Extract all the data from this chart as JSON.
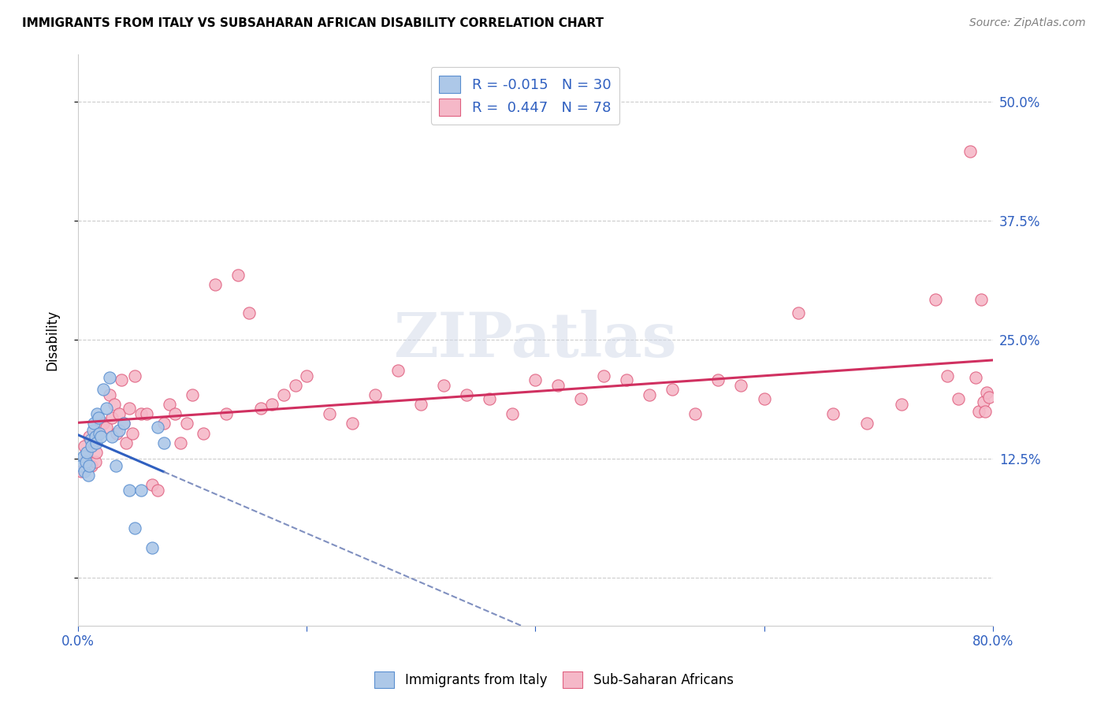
{
  "title": "IMMIGRANTS FROM ITALY VS SUBSAHARAN AFRICAN DISABILITY CORRELATION CHART",
  "source": "Source: ZipAtlas.com",
  "ylabel": "Disability",
  "xlim": [
    0.0,
    0.8
  ],
  "ylim": [
    -0.05,
    0.55
  ],
  "yticks": [
    0.0,
    0.125,
    0.25,
    0.375,
    0.5
  ],
  "ytick_labels": [
    "",
    "12.5%",
    "25.0%",
    "37.5%",
    "50.0%"
  ],
  "xticks": [
    0.0,
    0.2,
    0.4,
    0.6,
    0.8
  ],
  "xtick_labels": [
    "0.0%",
    "",
    "",
    "",
    "80.0%"
  ],
  "blue_fill_color": "#adc8e8",
  "blue_edge_color": "#5a8fd0",
  "pink_fill_color": "#f5b8c8",
  "pink_edge_color": "#e06080",
  "blue_line_color": "#3060c0",
  "pink_line_color": "#d03060",
  "dashed_line_color": "#8090c0",
  "watermark_text": "ZIPatlas",
  "legend_R_blue": "-0.015",
  "legend_N_blue": "30",
  "legend_R_pink": "0.447",
  "legend_N_pink": "78",
  "blue_scatter_x": [
    0.003,
    0.005,
    0.006,
    0.007,
    0.008,
    0.009,
    0.01,
    0.011,
    0.012,
    0.013,
    0.014,
    0.015,
    0.016,
    0.017,
    0.018,
    0.019,
    0.02,
    0.022,
    0.025,
    0.028,
    0.03,
    0.033,
    0.036,
    0.04,
    0.045,
    0.05,
    0.055,
    0.065,
    0.07,
    0.075
  ],
  "blue_scatter_y": [
    0.118,
    0.128,
    0.112,
    0.122,
    0.132,
    0.108,
    0.118,
    0.145,
    0.138,
    0.155,
    0.162,
    0.148,
    0.142,
    0.172,
    0.168,
    0.152,
    0.148,
    0.198,
    0.178,
    0.21,
    0.148,
    0.118,
    0.155,
    0.162,
    0.092,
    0.052,
    0.092,
    0.032,
    0.158,
    0.142
  ],
  "pink_scatter_x": [
    0.003,
    0.006,
    0.008,
    0.01,
    0.012,
    0.014,
    0.015,
    0.016,
    0.018,
    0.02,
    0.022,
    0.025,
    0.028,
    0.03,
    0.032,
    0.034,
    0.036,
    0.038,
    0.04,
    0.042,
    0.045,
    0.048,
    0.05,
    0.055,
    0.06,
    0.065,
    0.07,
    0.075,
    0.08,
    0.085,
    0.09,
    0.095,
    0.1,
    0.11,
    0.12,
    0.13,
    0.14,
    0.15,
    0.16,
    0.17,
    0.18,
    0.19,
    0.2,
    0.22,
    0.24,
    0.26,
    0.28,
    0.3,
    0.32,
    0.34,
    0.36,
    0.38,
    0.4,
    0.42,
    0.44,
    0.46,
    0.48,
    0.5,
    0.52,
    0.54,
    0.56,
    0.58,
    0.6,
    0.63,
    0.66,
    0.69,
    0.72,
    0.75,
    0.76,
    0.77,
    0.78,
    0.785,
    0.788,
    0.79,
    0.792,
    0.793,
    0.795,
    0.797
  ],
  "pink_scatter_y": [
    0.112,
    0.138,
    0.128,
    0.148,
    0.118,
    0.142,
    0.122,
    0.132,
    0.152,
    0.162,
    0.162,
    0.158,
    0.192,
    0.168,
    0.182,
    0.152,
    0.172,
    0.208,
    0.162,
    0.142,
    0.178,
    0.152,
    0.212,
    0.172,
    0.172,
    0.098,
    0.092,
    0.162,
    0.182,
    0.172,
    0.142,
    0.162,
    0.192,
    0.152,
    0.308,
    0.172,
    0.318,
    0.278,
    0.178,
    0.182,
    0.192,
    0.202,
    0.212,
    0.172,
    0.162,
    0.192,
    0.218,
    0.182,
    0.202,
    0.192,
    0.188,
    0.172,
    0.208,
    0.202,
    0.188,
    0.212,
    0.208,
    0.192,
    0.198,
    0.172,
    0.208,
    0.202,
    0.188,
    0.278,
    0.172,
    0.162,
    0.182,
    0.292,
    0.212,
    0.188,
    0.448,
    0.21,
    0.175,
    0.292,
    0.185,
    0.175,
    0.195,
    0.19
  ]
}
